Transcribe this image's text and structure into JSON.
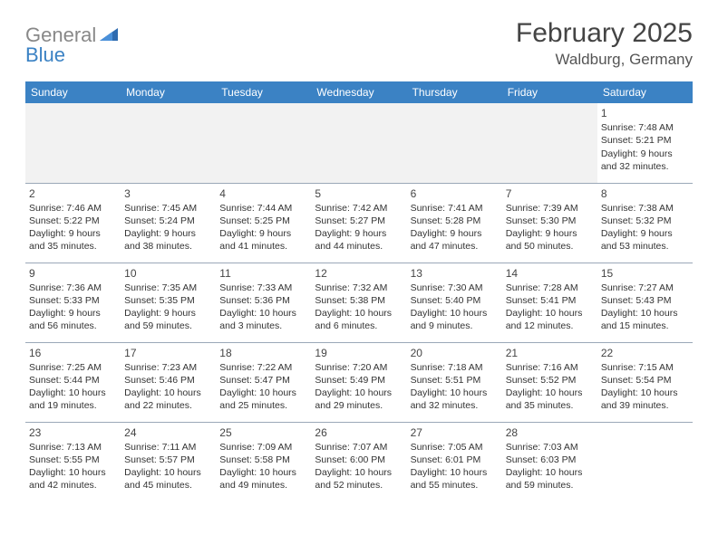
{
  "logo": {
    "word1": "General",
    "word2": "Blue"
  },
  "header": {
    "month": "February 2025",
    "location": "Waldburg, Germany"
  },
  "columns": [
    "Sunday",
    "Monday",
    "Tuesday",
    "Wednesday",
    "Thursday",
    "Friday",
    "Saturday"
  ],
  "colors": {
    "header_bg": "#3b82c4",
    "header_text": "#ffffff",
    "border": "#9aa8b8",
    "logo_gray": "#888888",
    "logo_blue": "#3b82c4",
    "empty_bg": "#f2f2f2"
  },
  "weeks": [
    [
      null,
      null,
      null,
      null,
      null,
      null,
      {
        "n": "1",
        "sunrise": "Sunrise: 7:48 AM",
        "sunset": "Sunset: 5:21 PM",
        "daylight": "Daylight: 9 hours and 32 minutes."
      }
    ],
    [
      {
        "n": "2",
        "sunrise": "Sunrise: 7:46 AM",
        "sunset": "Sunset: 5:22 PM",
        "daylight": "Daylight: 9 hours and 35 minutes."
      },
      {
        "n": "3",
        "sunrise": "Sunrise: 7:45 AM",
        "sunset": "Sunset: 5:24 PM",
        "daylight": "Daylight: 9 hours and 38 minutes."
      },
      {
        "n": "4",
        "sunrise": "Sunrise: 7:44 AM",
        "sunset": "Sunset: 5:25 PM",
        "daylight": "Daylight: 9 hours and 41 minutes."
      },
      {
        "n": "5",
        "sunrise": "Sunrise: 7:42 AM",
        "sunset": "Sunset: 5:27 PM",
        "daylight": "Daylight: 9 hours and 44 minutes."
      },
      {
        "n": "6",
        "sunrise": "Sunrise: 7:41 AM",
        "sunset": "Sunset: 5:28 PM",
        "daylight": "Daylight: 9 hours and 47 minutes."
      },
      {
        "n": "7",
        "sunrise": "Sunrise: 7:39 AM",
        "sunset": "Sunset: 5:30 PM",
        "daylight": "Daylight: 9 hours and 50 minutes."
      },
      {
        "n": "8",
        "sunrise": "Sunrise: 7:38 AM",
        "sunset": "Sunset: 5:32 PM",
        "daylight": "Daylight: 9 hours and 53 minutes."
      }
    ],
    [
      {
        "n": "9",
        "sunrise": "Sunrise: 7:36 AM",
        "sunset": "Sunset: 5:33 PM",
        "daylight": "Daylight: 9 hours and 56 minutes."
      },
      {
        "n": "10",
        "sunrise": "Sunrise: 7:35 AM",
        "sunset": "Sunset: 5:35 PM",
        "daylight": "Daylight: 9 hours and 59 minutes."
      },
      {
        "n": "11",
        "sunrise": "Sunrise: 7:33 AM",
        "sunset": "Sunset: 5:36 PM",
        "daylight": "Daylight: 10 hours and 3 minutes."
      },
      {
        "n": "12",
        "sunrise": "Sunrise: 7:32 AM",
        "sunset": "Sunset: 5:38 PM",
        "daylight": "Daylight: 10 hours and 6 minutes."
      },
      {
        "n": "13",
        "sunrise": "Sunrise: 7:30 AM",
        "sunset": "Sunset: 5:40 PM",
        "daylight": "Daylight: 10 hours and 9 minutes."
      },
      {
        "n": "14",
        "sunrise": "Sunrise: 7:28 AM",
        "sunset": "Sunset: 5:41 PM",
        "daylight": "Daylight: 10 hours and 12 minutes."
      },
      {
        "n": "15",
        "sunrise": "Sunrise: 7:27 AM",
        "sunset": "Sunset: 5:43 PM",
        "daylight": "Daylight: 10 hours and 15 minutes."
      }
    ],
    [
      {
        "n": "16",
        "sunrise": "Sunrise: 7:25 AM",
        "sunset": "Sunset: 5:44 PM",
        "daylight": "Daylight: 10 hours and 19 minutes."
      },
      {
        "n": "17",
        "sunrise": "Sunrise: 7:23 AM",
        "sunset": "Sunset: 5:46 PM",
        "daylight": "Daylight: 10 hours and 22 minutes."
      },
      {
        "n": "18",
        "sunrise": "Sunrise: 7:22 AM",
        "sunset": "Sunset: 5:47 PM",
        "daylight": "Daylight: 10 hours and 25 minutes."
      },
      {
        "n": "19",
        "sunrise": "Sunrise: 7:20 AM",
        "sunset": "Sunset: 5:49 PM",
        "daylight": "Daylight: 10 hours and 29 minutes."
      },
      {
        "n": "20",
        "sunrise": "Sunrise: 7:18 AM",
        "sunset": "Sunset: 5:51 PM",
        "daylight": "Daylight: 10 hours and 32 minutes."
      },
      {
        "n": "21",
        "sunrise": "Sunrise: 7:16 AM",
        "sunset": "Sunset: 5:52 PM",
        "daylight": "Daylight: 10 hours and 35 minutes."
      },
      {
        "n": "22",
        "sunrise": "Sunrise: 7:15 AM",
        "sunset": "Sunset: 5:54 PM",
        "daylight": "Daylight: 10 hours and 39 minutes."
      }
    ],
    [
      {
        "n": "23",
        "sunrise": "Sunrise: 7:13 AM",
        "sunset": "Sunset: 5:55 PM",
        "daylight": "Daylight: 10 hours and 42 minutes."
      },
      {
        "n": "24",
        "sunrise": "Sunrise: 7:11 AM",
        "sunset": "Sunset: 5:57 PM",
        "daylight": "Daylight: 10 hours and 45 minutes."
      },
      {
        "n": "25",
        "sunrise": "Sunrise: 7:09 AM",
        "sunset": "Sunset: 5:58 PM",
        "daylight": "Daylight: 10 hours and 49 minutes."
      },
      {
        "n": "26",
        "sunrise": "Sunrise: 7:07 AM",
        "sunset": "Sunset: 6:00 PM",
        "daylight": "Daylight: 10 hours and 52 minutes."
      },
      {
        "n": "27",
        "sunrise": "Sunrise: 7:05 AM",
        "sunset": "Sunset: 6:01 PM",
        "daylight": "Daylight: 10 hours and 55 minutes."
      },
      {
        "n": "28",
        "sunrise": "Sunrise: 7:03 AM",
        "sunset": "Sunset: 6:03 PM",
        "daylight": "Daylight: 10 hours and 59 minutes."
      },
      null
    ]
  ]
}
